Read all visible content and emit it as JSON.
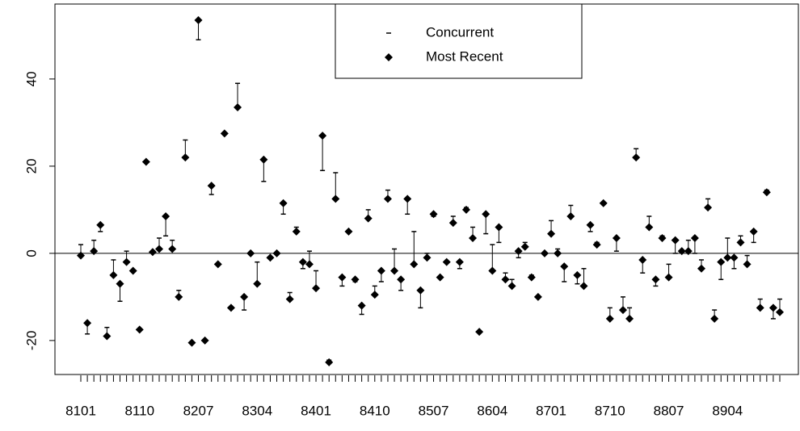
{
  "chart_data": {
    "type": "scatter",
    "categories": [
      "8101",
      null,
      null,
      null,
      null,
      null,
      null,
      null,
      null,
      "8110",
      null,
      null,
      null,
      null,
      null,
      null,
      null,
      null,
      "8207",
      null,
      null,
      null,
      null,
      null,
      null,
      null,
      null,
      "8304",
      null,
      null,
      null,
      null,
      null,
      null,
      null,
      null,
      "8401",
      null,
      null,
      null,
      null,
      null,
      null,
      null,
      null,
      "8410",
      null,
      null,
      null,
      null,
      null,
      null,
      null,
      null,
      "8507",
      null,
      null,
      null,
      null,
      null,
      null,
      null,
      null,
      "8604",
      null,
      null,
      null,
      null,
      null,
      null,
      null,
      null,
      "8701",
      null,
      null,
      null,
      null,
      null,
      null,
      null,
      null,
      "8710",
      null,
      null,
      null,
      null,
      null,
      null,
      null,
      null,
      "8807",
      null,
      null,
      null,
      null,
      null,
      null,
      null,
      null,
      "8904",
      null,
      null,
      null,
      null,
      null,
      null,
      null,
      null
    ],
    "series": [
      {
        "name": "Concurrent",
        "color": "#000000",
        "marker": "dash",
        "values": [
          2,
          -18.5,
          3,
          5,
          -17,
          -1.5,
          -11,
          0.5,
          -4,
          -17.5,
          21,
          0.3,
          3.5,
          4,
          3,
          -8.5,
          26,
          -20.5,
          49,
          -20,
          13.5,
          -2.5,
          27.5,
          -12.5,
          39,
          -13,
          0,
          -2,
          16.5,
          -1,
          0,
          9,
          -9,
          6,
          -3.5,
          0.5,
          -4,
          19,
          -24.5,
          18.5,
          -7.5,
          5,
          -6.5,
          -14,
          10,
          -7.5,
          -6.5,
          14.5,
          1,
          -8.5,
          9,
          5,
          -12.5,
          0,
          8.5,
          -5.5,
          -2,
          8.5,
          -3.5,
          10.5,
          6,
          -18,
          4.5,
          2,
          2.5,
          -4.5,
          -6,
          -1,
          2.5,
          -5,
          -10,
          0,
          7.5,
          1,
          -6.5,
          11,
          -7,
          -3.5,
          5,
          2.5,
          11.5,
          -12.5,
          0.5,
          -10,
          -12.5,
          24,
          -4.5,
          8.5,
          -7.5,
          4,
          -2.5,
          0,
          0.5,
          3,
          0,
          -1.5,
          12.5,
          -13,
          -6,
          3.5,
          -3.5,
          4,
          -0.5,
          2.5,
          -10.5,
          14.5,
          -15,
          -10.5
        ]
      },
      {
        "name": "Most Recent",
        "color": "#000000",
        "marker": "diamond",
        "values": [
          -0.5,
          -16,
          0.5,
          6.5,
          -19,
          -5,
          -7,
          -2,
          -4,
          -17.5,
          21,
          0.3,
          1,
          8.5,
          1,
          -10,
          22,
          -20.5,
          53.5,
          -20,
          15.5,
          -2.5,
          27.5,
          -12.5,
          33.5,
          -10,
          0,
          -7,
          21.5,
          -1,
          0,
          11.5,
          -10.5,
          5,
          -2,
          -2.5,
          -8,
          27,
          -25,
          12.5,
          -5.5,
          5,
          -6,
          -12,
          8,
          -9.5,
          -4,
          12.5,
          -4,
          -6,
          12.5,
          -2.5,
          -8.5,
          -1,
          9,
          -5.5,
          -2,
          7,
          -2,
          10,
          3.5,
          -18,
          9,
          -4,
          6,
          -6,
          -7.5,
          0.5,
          1.5,
          -5.5,
          -10,
          0,
          4.5,
          0,
          -3,
          8.5,
          -5,
          -7.5,
          6.5,
          2,
          11.5,
          -15,
          3.5,
          -13,
          -15,
          22,
          -1.5,
          6,
          -6,
          3.5,
          -5.5,
          3,
          0.5,
          0.5,
          3.5,
          -3.5,
          10.5,
          -15,
          -2,
          -1,
          -1,
          2.5,
          -2.5,
          5,
          -12.5,
          14,
          -12.5,
          -13.5
        ]
      }
    ],
    "ylim": [
      -27.8,
      57.2
    ],
    "yticks": [
      -20,
      0,
      20,
      40
    ],
    "hline": 0,
    "legend": "top"
  }
}
